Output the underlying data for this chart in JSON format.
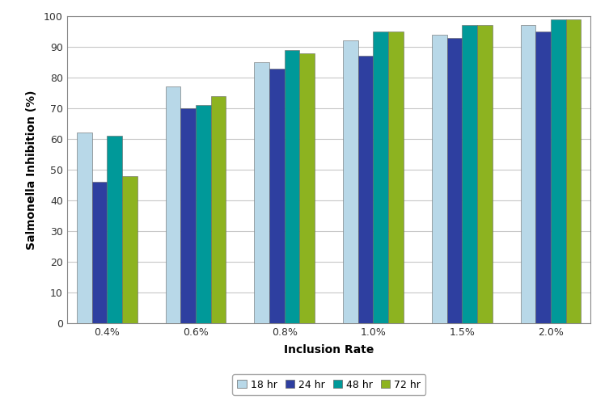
{
  "categories": [
    "0.4%",
    "0.6%",
    "0.8%",
    "1.0%",
    "1.5%",
    "2.0%"
  ],
  "series": {
    "18 hr": [
      62,
      77,
      85,
      92,
      94,
      97
    ],
    "24 hr": [
      46,
      70,
      83,
      87,
      93,
      95
    ],
    "48 hr": [
      61,
      71,
      89,
      95,
      97,
      99
    ],
    "72 hr": [
      48,
      74,
      88,
      95,
      97,
      99
    ]
  },
  "colors": {
    "18 hr": "#B8D8E8",
    "24 hr": "#2E3FA0",
    "48 hr": "#009999",
    "72 hr": "#8DB320"
  },
  "xlabel": "Inclusion Rate",
  "ylabel": "Salmonella Inhibition (%)",
  "ylim": [
    0,
    100
  ],
  "yticks": [
    0,
    10,
    20,
    30,
    40,
    50,
    60,
    70,
    80,
    90,
    100
  ],
  "background_color": "#ffffff",
  "plot_area_color": "#ffffff",
  "grid_color": "#c8c8c8",
  "bar_edge_color": "#666666",
  "bar_edge_width": 0.4
}
